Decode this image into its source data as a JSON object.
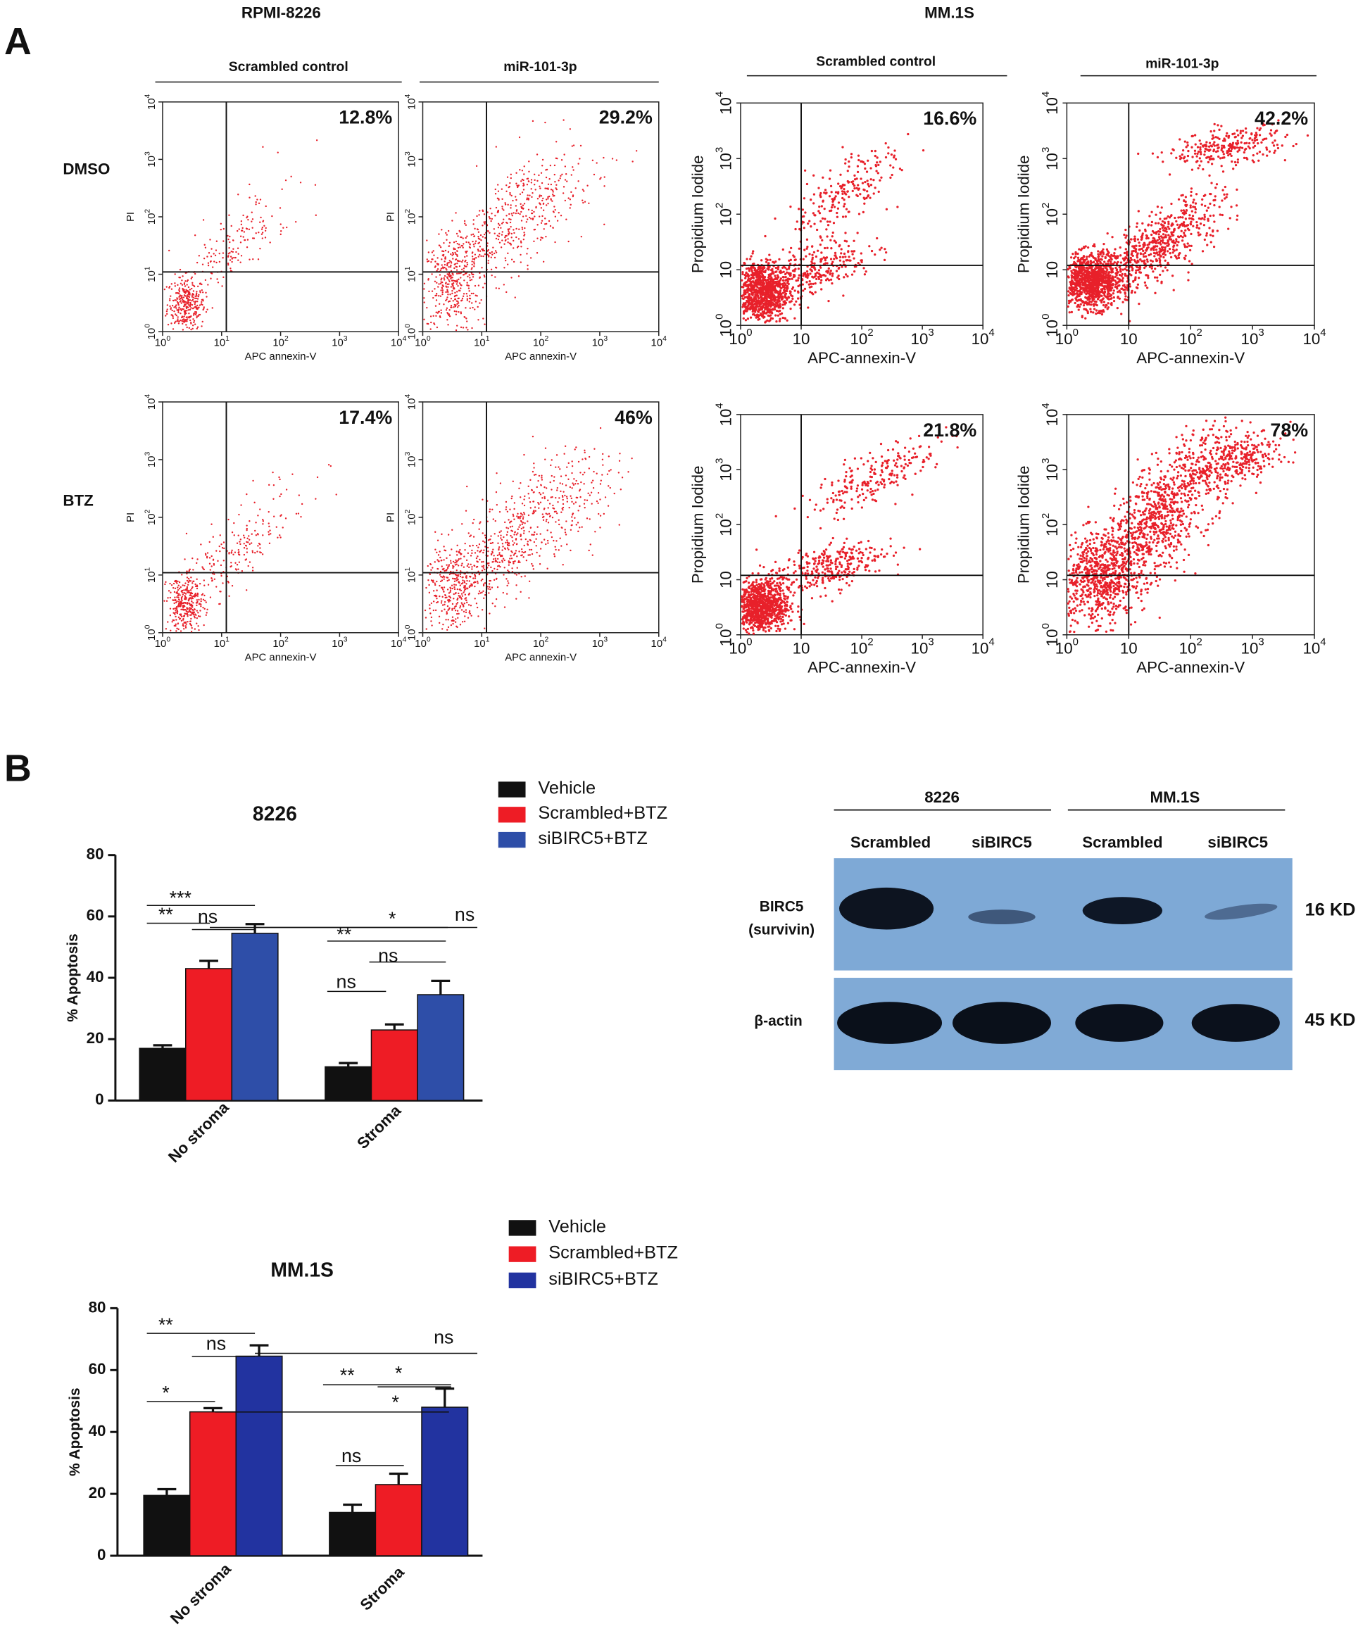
{
  "panel_a": {
    "label": "A",
    "cell_lines": [
      "RPMI-8226",
      "MM.1S"
    ],
    "conditions": [
      "DMSO",
      "BTZ"
    ],
    "columns": [
      "Scrambled control",
      "miR-101-3p",
      "Scrambled control",
      "miR-101-3p"
    ],
    "rpmi_axes": {
      "x_label": "APC annexin-V",
      "y_label": "PI",
      "ticks": [
        [
          "10",
          "0"
        ],
        [
          "10",
          "1"
        ],
        [
          "10",
          "2"
        ],
        [
          "10",
          "3"
        ],
        [
          "10",
          "4"
        ]
      ]
    },
    "mm_axes": {
      "x_label": "APC-annexin-V",
      "y_label": "Propidium Iodide",
      "ticks": [
        [
          "10",
          "0"
        ],
        [
          "10"
        ],
        [
          "10",
          "2"
        ],
        [
          "10",
          "3"
        ],
        [
          "10",
          "4"
        ]
      ]
    },
    "percentages": [
      [
        "12.8%",
        "29.2%",
        "16.6%",
        "42.2%"
      ],
      [
        "17.4%",
        "46%",
        "21.8%",
        "78%"
      ]
    ]
  },
  "panel_b": {
    "label": "B",
    "blot": {
      "groups": [
        "8226",
        "MM.1S"
      ],
      "lanes": [
        "Scrambled",
        "siBIRC5",
        "Scrambled",
        "siBIRC5"
      ],
      "rows": [
        [
          "BIRC5",
          "(survivin)"
        ],
        [
          "β-actin"
        ]
      ],
      "sizes": [
        "16 KD",
        "45 KD"
      ]
    }
  },
  "chart_data": [
    {
      "type": "bar",
      "title": "8226",
      "y_label": "% Apoptosis",
      "categories": [
        "No stroma",
        "Stroma"
      ],
      "series": [
        {
          "name": "Vehicle",
          "color": "#111111",
          "values": [
            17,
            11
          ],
          "errors": [
            1,
            1.2
          ]
        },
        {
          "name": "Scrambled+BTZ",
          "color": "#ee1c25",
          "values": [
            43,
            23
          ],
          "errors": [
            2.5,
            1.8
          ]
        },
        {
          "name": "siBIRC5+BTZ",
          "color": "#2e4ea8",
          "values": [
            54.5,
            34.5
          ],
          "errors": [
            3,
            4.5
          ]
        }
      ],
      "ylim": [
        0,
        80
      ],
      "yticks": [
        0,
        20,
        40,
        60,
        80
      ],
      "annotations": [
        "***",
        "ns",
        "ns",
        "**",
        "*",
        "**",
        "ns",
        "ns"
      ]
    },
    {
      "type": "bar",
      "title": "MM.1S",
      "y_label": "% Apoptosis",
      "categories": [
        "No stroma",
        "Stroma"
      ],
      "series": [
        {
          "name": "Vehicle",
          "color": "#111111",
          "values": [
            19.5,
            14
          ],
          "errors": [
            2,
            2.5
          ]
        },
        {
          "name": "Scrambled+BTZ",
          "color": "#ee1c25",
          "values": [
            46.5,
            23
          ],
          "errors": [
            1.2,
            3.5
          ]
        },
        {
          "name": "siBIRC5+BTZ",
          "color": "#2233a0",
          "values": [
            64.5,
            48
          ],
          "errors": [
            3.5,
            6
          ]
        }
      ],
      "ylim": [
        0,
        80
      ],
      "yticks": [
        0,
        20,
        40,
        60,
        80
      ],
      "annotations": [
        "**",
        "ns",
        "ns",
        "*",
        "*",
        "**",
        "*",
        "ns"
      ]
    }
  ]
}
